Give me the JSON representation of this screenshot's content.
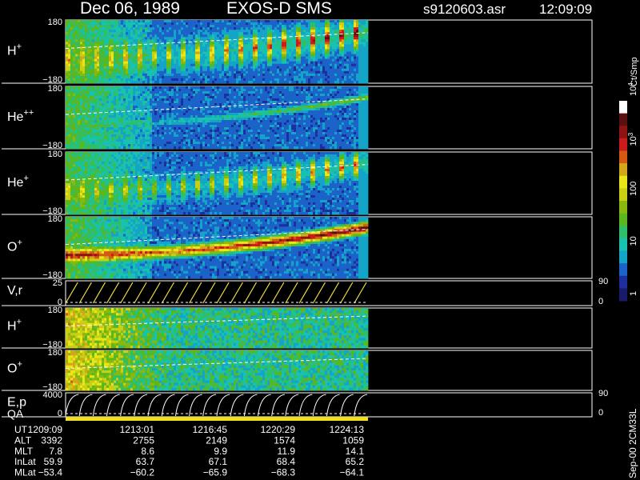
{
  "header": {
    "date": "Dec 06, 1989",
    "instrument": "EXOS-D SMS",
    "file": "s9120603.asr",
    "time": "12:09:09"
  },
  "footer": {
    "vertical_tag": "Sep-00 2CM33L"
  },
  "colors": {
    "trace": "#ffffff",
    "velocity_trace": "#f0e040",
    "qa_bar": "#f0e020",
    "spectrogram_palette": [
      "#1a1a6a",
      "#1c2f9c",
      "#1b63c8",
      "#14a4c8",
      "#19c1b0",
      "#2dbf69",
      "#5ab71d",
      "#89b80f",
      "#c9cf14",
      "#e8e818",
      "#d2a71a",
      "#d45a14",
      "#ca1c1c",
      "#8e1414",
      "#5a1010",
      "#ffffff"
    ]
  },
  "chart_data": {
    "type": "heatmap",
    "panels": [
      {
        "label_base": "H",
        "label_sup": "+",
        "ymax": "180",
        "ymin": "−180",
        "ylim": [
          -180,
          180
        ],
        "style": "pulsed"
      },
      {
        "label_base": "He",
        "label_sup": "++",
        "ymax": "180",
        "ymin": "−180",
        "ylim": [
          -180,
          180
        ],
        "style": "faint"
      },
      {
        "label_base": "He",
        "label_sup": "+",
        "ymax": "180",
        "ymin": "−180",
        "ylim": [
          -180,
          180
        ],
        "style": "pulsed-mid"
      },
      {
        "label_base": "O",
        "label_sup": "+",
        "ymax": "180",
        "ymin": "−180",
        "ylim": [
          -180,
          180
        ],
        "style": "strong"
      },
      {
        "label_base": "V,r",
        "label_sup": "",
        "ymax": "25",
        "ymin": "0",
        "ylim": [
          0,
          25
        ],
        "right_max": "90",
        "right_min": "0",
        "style": "sweep"
      },
      {
        "label_base": "H",
        "label_sup": "+",
        "ymax": "180",
        "ymin": "−180",
        "ylim": [
          -180,
          180
        ],
        "style": "noisy-green"
      },
      {
        "label_base": "O",
        "label_sup": "+",
        "ymax": "180",
        "ymin": "−180",
        "ylim": [
          -180,
          180
        ],
        "style": "noisy-green"
      },
      {
        "label_base": "E,p",
        "label_sup": "",
        "ymax": "4000",
        "ymin": "0",
        "ylim": [
          0,
          4000
        ],
        "right_max": "90",
        "right_min": "0",
        "style": "energy-sweep"
      }
    ],
    "qa_label": "QA",
    "colorbar": {
      "title": "Ct/Smp",
      "ticks": [
        {
          "label": "1",
          "value": 1
        },
        {
          "label": "10",
          "value": 10
        },
        {
          "label": "100",
          "value": 100
        },
        {
          "label": "10",
          "sup": "3",
          "value": 1000
        },
        {
          "label": "10",
          "sup": "4",
          "value": 10000
        }
      ],
      "scale": "log",
      "range": [
        1,
        10000
      ]
    },
    "time_axis": {
      "rows": [
        {
          "label": "UT",
          "values": [
            "1209:09",
            "1213:01",
            "1216:45",
            "1220:29",
            "1224:13"
          ]
        },
        {
          "label": "ALT",
          "values": [
            "3392",
            "2755",
            "2149",
            "1574",
            "1059"
          ]
        },
        {
          "label": "MLT",
          "values": [
            "7.8",
            "8.6",
            "9.9",
            "11.9",
            "14.1"
          ]
        },
        {
          "label": "InLat",
          "values": [
            "59.9",
            "63.7",
            "67.1",
            "68.4",
            "65.2"
          ]
        },
        {
          "label": "MLat",
          "values": [
            "−53.4",
            "−60.2",
            "−65.9",
            "−68.3",
            "−64.1"
          ]
        }
      ]
    }
  }
}
